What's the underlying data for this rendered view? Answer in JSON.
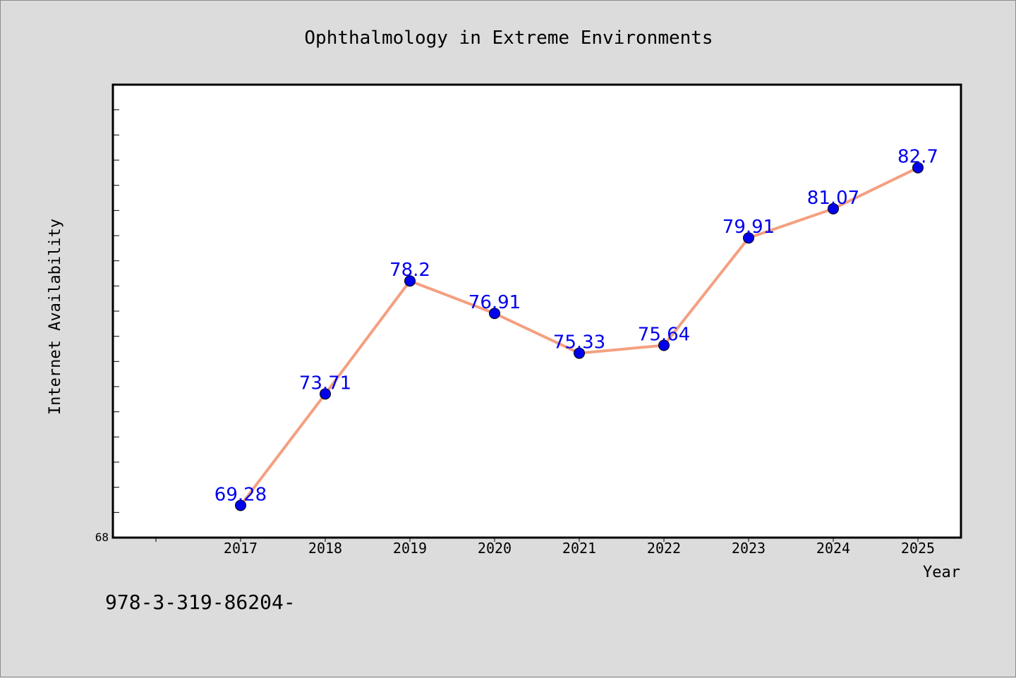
{
  "chart_data": {
    "type": "line",
    "title": "Ophthalmology in Extreme Environments",
    "xlabel": "Year",
    "ylabel": "Internet Availability",
    "x": [
      "2017",
      "2018",
      "2019",
      "2020",
      "2021",
      "2022",
      "2023",
      "2024",
      "2025"
    ],
    "series": [
      {
        "values": [
          69.28,
          73.71,
          78.2,
          76.91,
          75.33,
          75.64,
          79.91,
          81.07,
          82.7
        ],
        "labels": [
          "69.28",
          "73.71",
          "78.2",
          "76.91",
          "75.33",
          "75.64",
          "79.91",
          "81.07",
          "82.7"
        ]
      }
    ],
    "ylim": [
      68,
      86
    ],
    "y_tick_label": "68",
    "grid": false,
    "legend": "none",
    "colors": {
      "line": "#f4a080",
      "marker": "#0000ee",
      "label": "#0000ee",
      "plot_bg": "#ffffff",
      "page_bg": "#dcdcdc"
    }
  },
  "footer": {
    "text": "978-3-319-86204-"
  }
}
